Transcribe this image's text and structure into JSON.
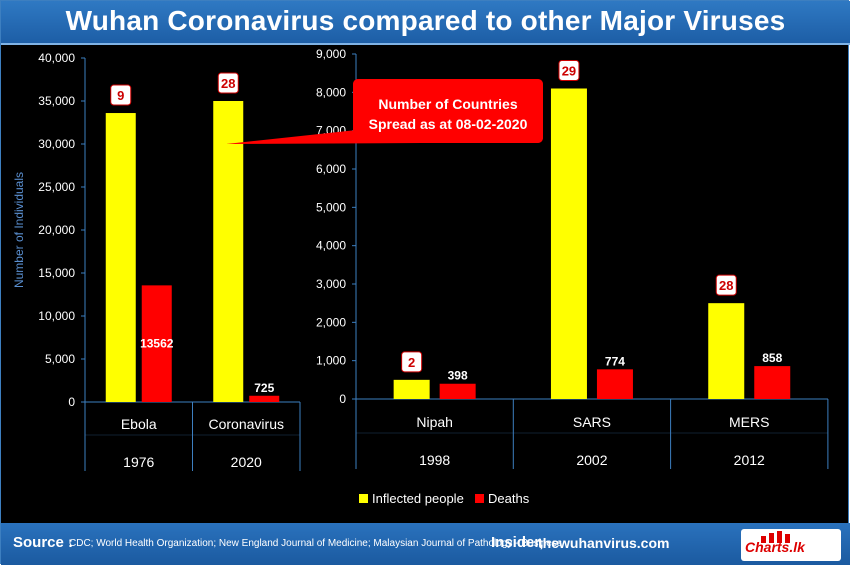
{
  "title": "Wuhan Coronavirus compared to other Major Viruses",
  "chart_data": [
    {
      "type": "bar",
      "categories": [
        "Ebola",
        "Coronavirus"
      ],
      "years": [
        "1976",
        "2020"
      ],
      "series": [
        {
          "name": "Inflected people",
          "values": [
            33600,
            35000
          ],
          "color": "#ffff00"
        },
        {
          "name": "Deaths",
          "values": [
            13562,
            725
          ],
          "color": "#ff0000",
          "labels": [
            "13562",
            "725"
          ]
        }
      ],
      "countries": [
        "9",
        "28"
      ],
      "ylabel": "Number of Individuals",
      "ylim": [
        0,
        40000
      ],
      "yticks": [
        "0",
        "5,000",
        "10,000",
        "15,000",
        "20,000",
        "25,000",
        "30,000",
        "35,000",
        "40,000"
      ]
    },
    {
      "type": "bar",
      "categories": [
        "Nipah",
        "SARS",
        "MERS"
      ],
      "years": [
        "1998",
        "2002",
        "2012"
      ],
      "series": [
        {
          "name": "Inflected people",
          "values": [
            500,
            8100,
            2500
          ],
          "color": "#ffff00"
        },
        {
          "name": "Deaths",
          "values": [
            398,
            774,
            858
          ],
          "color": "#ff0000",
          "labels": [
            "398",
            "774",
            "858"
          ]
        }
      ],
      "countries": [
        "2",
        "29",
        "28"
      ],
      "ylim": [
        0,
        9000
      ],
      "yticks": [
        "0",
        "1,000",
        "2,000",
        "3,000",
        "4,000",
        "5,000",
        "6,000",
        "7,000",
        "8,000",
        "9,000"
      ]
    }
  ],
  "callout": {
    "line1": "Number of Countries",
    "line2": "Spread as at 08-02-2020"
  },
  "legend": {
    "infected": "Inflected people",
    "deaths": "Deaths"
  },
  "footer": {
    "label": "Source :",
    "sources": "CDC; World Health Organization; New England Journal of Medicine; Malaysian Journal of Pathology - Business",
    "brand": "Insider,",
    "site": "thewuhanvirus.com",
    "logo": "Charts.lk"
  },
  "colors": {
    "infected": "#ffff00",
    "deaths": "#ff0000",
    "axis": "#3d7fc0"
  }
}
